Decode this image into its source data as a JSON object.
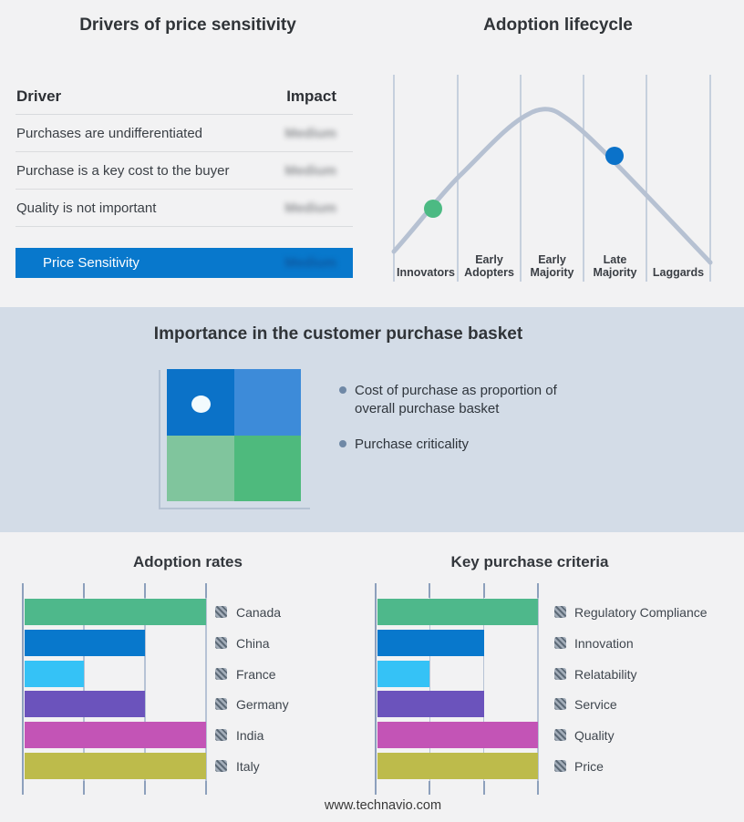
{
  "palette": {
    "accent_blue": "#0878cc",
    "band_background": "#d3dce7",
    "page_background": "#f2f2f3",
    "curve_gray": "#b6c1d2",
    "gridline": "#b7c3d5",
    "axis_tick": "#8da0bc"
  },
  "drivers_table": {
    "title": "Drivers of price sensitivity",
    "columns": {
      "driver": "Driver",
      "impact": "Impact"
    },
    "rows": [
      {
        "driver": "Purchases are undifferentiated",
        "impact": "Medium",
        "impact_blurred": true
      },
      {
        "driver": "Purchase is a key cost to the buyer",
        "impact": "Medium",
        "impact_blurred": true
      },
      {
        "driver": "Quality is not important",
        "impact": "Medium",
        "impact_blurred": true
      }
    ],
    "highlight": {
      "driver": "Price Sensitivity",
      "impact": "Medium",
      "impact_blurred": true,
      "bg": "#0878cc"
    }
  },
  "basket": {
    "title": "Importance in the customer purchase basket",
    "bullets": [
      "Cost of purchase as proportion of overall purchase basket",
      "Purchase criticality"
    ],
    "quadrant_colors": {
      "top_left": "#0b72c8",
      "top_right": "#3d8bd9",
      "bottom_left": "#80c59d",
      "bottom_right": "#4eba7d"
    }
  },
  "footer": {
    "url": "www.technavio.com"
  },
  "chart_data": [
    {
      "type": "table",
      "title": "Drivers of price sensitivity",
      "columns": [
        "Driver",
        "Impact"
      ],
      "rows": [
        [
          "Purchases are undifferentiated",
          "Medium"
        ],
        [
          "Purchase is a key cost to the buyer",
          "Medium"
        ],
        [
          "Quality is not important",
          "Medium"
        ],
        [
          "Price Sensitivity",
          "Medium"
        ]
      ],
      "note": "Impact values are blurred/redacted in the source image; last row highlighted blue"
    },
    {
      "type": "line",
      "title": "Adoption lifecycle",
      "categories": [
        "Innovators",
        "Early Adopters",
        "Early Majority",
        "Late Majority",
        "Laggards"
      ],
      "curve": "bell-shaped adoption curve peaking over Early Majority, no y-axis values shown",
      "markers": [
        {
          "stage": "Innovators",
          "color": "#4cba83"
        },
        {
          "stage": "Late Majority",
          "color": "#0b72c9"
        }
      ],
      "grid": "vertical stage-separator lines, 5 segments"
    },
    {
      "type": "bar",
      "title": "Adoption rates",
      "orientation": "horizontal",
      "categories": [
        "Canada",
        "China",
        "France",
        "Germany",
        "India",
        "Italy"
      ],
      "values": [
        1,
        0.667,
        0.333,
        0.667,
        1,
        1
      ],
      "xlim": [
        0,
        1
      ],
      "colors": [
        "#4eb88b",
        "#0878cc",
        "#35c2f6",
        "#6b53bc",
        "#c354b6",
        "#bdbb4b"
      ],
      "note": "axis unlabeled; bar lengths read from gridlines at thirds of axis",
      "legend_position": "right",
      "legend_swatch": "gray hatched square (redacted icon)"
    },
    {
      "type": "bar",
      "title": "Key purchase criteria",
      "orientation": "horizontal",
      "categories": [
        "Regulatory Compliance",
        "Innovation",
        "Relatability",
        "Service",
        "Quality",
        "Price"
      ],
      "values": [
        1,
        0.667,
        0.333,
        0.667,
        1,
        1
      ],
      "xlim": [
        0,
        1
      ],
      "colors": [
        "#4eb88b",
        "#0878cc",
        "#35c2f6",
        "#6b53bc",
        "#c354b6",
        "#bdbb4b"
      ],
      "note": "axis unlabeled; bar lengths read from gridlines at thirds of axis",
      "legend_position": "right",
      "legend_swatch": "gray hatched square (redacted icon)"
    }
  ]
}
